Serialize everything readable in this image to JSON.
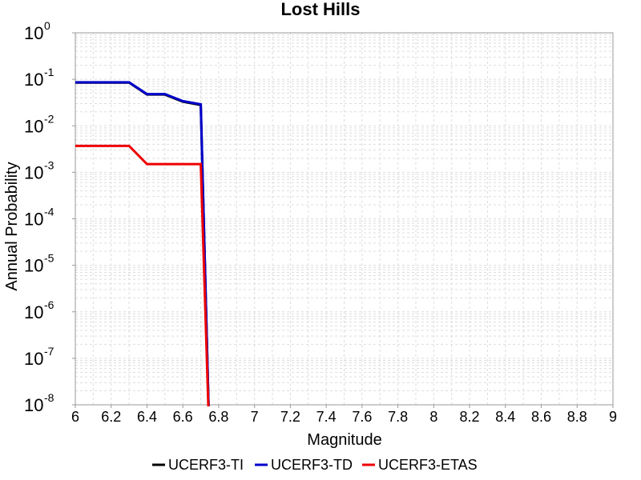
{
  "chart_data": {
    "type": "line",
    "title": "Lost Hills",
    "xlabel": "Magnitude",
    "ylabel": "Annual Probability",
    "xlim": [
      6,
      9
    ],
    "ylim": [
      1e-08,
      1
    ],
    "yscale": "log",
    "grid": true,
    "legend": "bottom",
    "x_ticks": [
      "6",
      "6.2",
      "6.4",
      "6.6",
      "6.8",
      "7",
      "7.2",
      "7.4",
      "7.6",
      "7.8",
      "8",
      "8.2",
      "8.4",
      "8.6",
      "8.8",
      "9"
    ],
    "y_ticks": [
      {
        "base": "10",
        "exp": "0",
        "value": 1
      },
      {
        "base": "10",
        "exp": "-1",
        "value": 0.1
      },
      {
        "base": "10",
        "exp": "-2",
        "value": 0.01
      },
      {
        "base": "10",
        "exp": "-3",
        "value": 0.001
      },
      {
        "base": "10",
        "exp": "-4",
        "value": 0.0001
      },
      {
        "base": "10",
        "exp": "-5",
        "value": 1e-05
      },
      {
        "base": "10",
        "exp": "-6",
        "value": 1e-06
      },
      {
        "base": "10",
        "exp": "-7",
        "value": 1e-07
      },
      {
        "base": "10",
        "exp": "-8",
        "value": 1e-08
      }
    ],
    "series": [
      {
        "name": "UCERF3-TI",
        "color": "#000000",
        "x": [
          6.0,
          6.1,
          6.2,
          6.3,
          6.4,
          6.5,
          6.6,
          6.7,
          6.75
        ],
        "values": [
          0.085,
          0.085,
          0.085,
          0.085,
          0.047,
          0.047,
          0.033,
          0.028,
          1e-09
        ]
      },
      {
        "name": "UCERF3-TD",
        "color": "#0000cc",
        "x": [
          6.0,
          6.1,
          6.2,
          6.3,
          6.4,
          6.5,
          6.6,
          6.7,
          6.75
        ],
        "values": [
          0.086,
          0.086,
          0.086,
          0.086,
          0.048,
          0.048,
          0.034,
          0.029,
          1e-09
        ]
      },
      {
        "name": "UCERF3-ETAS",
        "color": "#ee0000",
        "x": [
          6.0,
          6.1,
          6.2,
          6.3,
          6.4,
          6.5,
          6.6,
          6.7,
          6.75
        ],
        "values": [
          0.0037,
          0.0037,
          0.0037,
          0.0037,
          0.0015,
          0.0015,
          0.0015,
          0.0015,
          1e-09
        ]
      }
    ]
  }
}
